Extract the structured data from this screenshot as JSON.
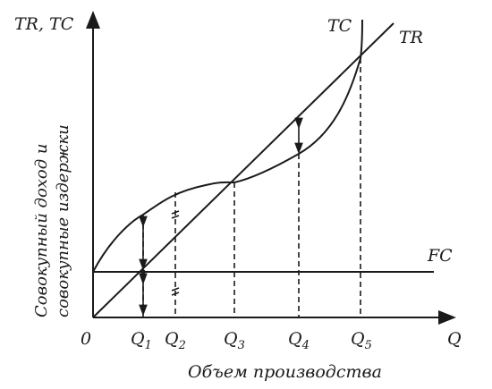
{
  "axes": {
    "y_label": "TR, TC",
    "x_label": "Q",
    "origin": "0",
    "x_title": "Объем производства",
    "y_title_line1": "Совокупный доход и",
    "y_title_line2": "совокупные издержки"
  },
  "curves": {
    "tc": "TC",
    "tr": "TR",
    "fc": "FC"
  },
  "ticks": [
    {
      "base": "Q",
      "sub": "1"
    },
    {
      "base": "Q",
      "sub": "2"
    },
    {
      "base": "Q",
      "sub": "3"
    },
    {
      "base": "Q",
      "sub": "4"
    },
    {
      "base": "Q",
      "sub": "5"
    }
  ],
  "colors": {
    "ink": "#1a1a1a",
    "background": "#ffffff"
  }
}
